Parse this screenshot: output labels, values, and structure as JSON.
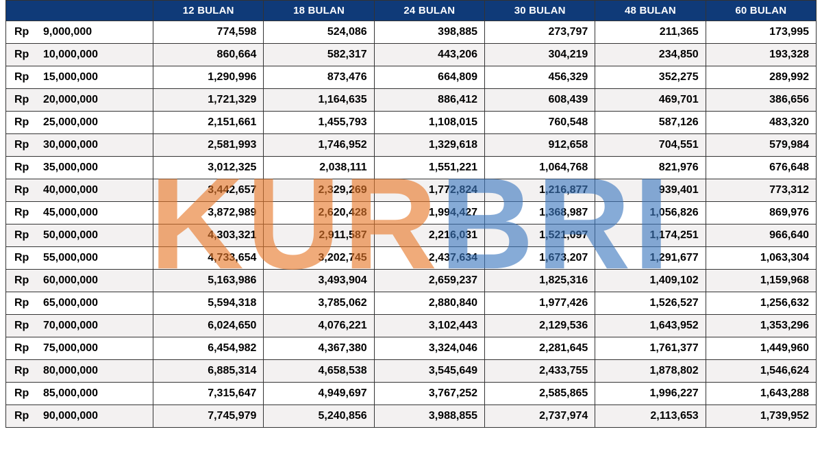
{
  "colors": {
    "header_bg": "#0f3a78",
    "header_text": "#ffffff",
    "row_even_bg": "#f3f1f1",
    "row_odd_bg": "#ffffff",
    "border": "#333333",
    "watermark_orange": "rgba(230,120,40,0.62)",
    "watermark_blue": "rgba(60,120,190,0.62)"
  },
  "currency_prefix": "Rp",
  "columns": [
    "12 BULAN",
    "18 BULAN",
    "24 BULAN",
    "30 BULAN",
    "48 BULAN",
    "60 BULAN"
  ],
  "column_widths_pct": [
    18,
    13.5,
    13.5,
    13.5,
    13.5,
    13.5,
    13.5
  ],
  "rows": [
    {
      "amount": "9,000,000",
      "cells": [
        "774,598",
        "524,086",
        "398,885",
        "273,797",
        "211,365",
        "173,995"
      ]
    },
    {
      "amount": "10,000,000",
      "cells": [
        "860,664",
        "582,317",
        "443,206",
        "304,219",
        "234,850",
        "193,328"
      ]
    },
    {
      "amount": "15,000,000",
      "cells": [
        "1,290,996",
        "873,476",
        "664,809",
        "456,329",
        "352,275",
        "289,992"
      ]
    },
    {
      "amount": "20,000,000",
      "cells": [
        "1,721,329",
        "1,164,635",
        "886,412",
        "608,439",
        "469,701",
        "386,656"
      ]
    },
    {
      "amount": "25,000,000",
      "cells": [
        "2,151,661",
        "1,455,793",
        "1,108,015",
        "760,548",
        "587,126",
        "483,320"
      ]
    },
    {
      "amount": "30,000,000",
      "cells": [
        "2,581,993",
        "1,746,952",
        "1,329,618",
        "912,658",
        "704,551",
        "579,984"
      ]
    },
    {
      "amount": "35,000,000",
      "cells": [
        "3,012,325",
        "2,038,111",
        "1,551,221",
        "1,064,768",
        "821,976",
        "676,648"
      ]
    },
    {
      "amount": "40,000,000",
      "cells": [
        "3,442,657",
        "2,329,269",
        "1,772,824",
        "1,216,877",
        "939,401",
        "773,312"
      ]
    },
    {
      "amount": "45,000,000",
      "cells": [
        "3,872,989",
        "2,620,428",
        "1,994,427",
        "1,368,987",
        "1,056,826",
        "869,976"
      ]
    },
    {
      "amount": "50,000,000",
      "cells": [
        "4,303,321",
        "2,911,587",
        "2,216,031",
        "1,521,097",
        "1,174,251",
        "966,640"
      ]
    },
    {
      "amount": "55,000,000",
      "cells": [
        "4,733,654",
        "3,202,745",
        "2,437,634",
        "1,673,207",
        "1,291,677",
        "1,063,304"
      ]
    },
    {
      "amount": "60,000,000",
      "cells": [
        "5,163,986",
        "3,493,904",
        "2,659,237",
        "1,825,316",
        "1,409,102",
        "1,159,968"
      ]
    },
    {
      "amount": "65,000,000",
      "cells": [
        "5,594,318",
        "3,785,062",
        "2,880,840",
        "1,977,426",
        "1,526,527",
        "1,256,632"
      ]
    },
    {
      "amount": "70,000,000",
      "cells": [
        "6,024,650",
        "4,076,221",
        "3,102,443",
        "2,129,536",
        "1,643,952",
        "1,353,296"
      ]
    },
    {
      "amount": "75,000,000",
      "cells": [
        "6,454,982",
        "4,367,380",
        "3,324,046",
        "2,281,645",
        "1,761,377",
        "1,449,960"
      ]
    },
    {
      "amount": "80,000,000",
      "cells": [
        "6,885,314",
        "4,658,538",
        "3,545,649",
        "2,433,755",
        "1,878,802",
        "1,546,624"
      ]
    },
    {
      "amount": "85,000,000",
      "cells": [
        "7,315,647",
        "4,949,697",
        "3,767,252",
        "2,585,865",
        "1,996,227",
        "1,643,288"
      ]
    },
    {
      "amount": "90,000,000",
      "cells": [
        "7,745,979",
        "5,240,856",
        "3,988,855",
        "2,737,974",
        "2,113,653",
        "1,739,952"
      ]
    }
  ],
  "watermark": {
    "left": "KUR",
    "right": "BRI"
  }
}
